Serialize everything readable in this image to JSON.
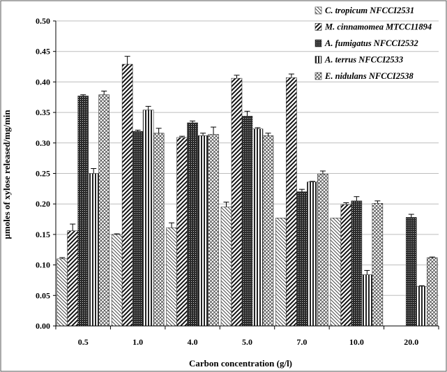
{
  "chart_data": {
    "type": "bar",
    "title": "",
    "xlabel": "Carbon concentration (g/l)",
    "ylabel": "µmoles of xylose released/mg/min",
    "categories": [
      "0.5",
      "1.0",
      "4.0",
      "5.0",
      "7.0",
      "10.0",
      "20.0"
    ],
    "ylim": [
      0,
      0.5
    ],
    "yticks": [
      "0.00",
      "0.05",
      "0.10",
      "0.15",
      "0.20",
      "0.25",
      "0.30",
      "0.35",
      "0.40",
      "0.45",
      "0.50"
    ],
    "legend_position": "top-right",
    "series": [
      {
        "name": "C. tropicum NFCCI2531",
        "pattern": "diag-thin-back",
        "values": [
          0.11,
          0.15,
          0.161,
          0.195,
          0.177,
          0.177,
          null
        ],
        "errors": [
          0.002,
          0.001,
          0.008,
          0.008,
          0.0,
          0.0,
          null
        ]
      },
      {
        "name": "M. cinnamomea MTCC11894",
        "pattern": "diag-thick-fwd",
        "values": [
          0.156,
          0.429,
          0.309,
          0.406,
          0.407,
          0.199,
          null
        ],
        "errors": [
          0.011,
          0.013,
          0.002,
          0.005,
          0.006,
          0.003,
          null
        ]
      },
      {
        "name": "A. fumigatus NFCCI2532",
        "pattern": "dense-dots",
        "values": [
          0.377,
          0.319,
          0.333,
          0.344,
          0.22,
          0.205,
          0.178
        ],
        "errors": [
          0.002,
          0.002,
          0.003,
          0.008,
          0.004,
          0.007,
          0.005
        ]
      },
      {
        "name": "A. terrus NFCCI2533",
        "pattern": "vertical-lines",
        "values": [
          0.25,
          0.354,
          0.312,
          0.323,
          0.236,
          0.084,
          0.065
        ],
        "errors": [
          0.008,
          0.006,
          0.004,
          0.002,
          0.001,
          0.007,
          0.001
        ]
      },
      {
        "name": "E. nidulans NFCCI2538",
        "pattern": "crosshatch",
        "values": [
          0.379,
          0.316,
          0.314,
          0.312,
          0.249,
          0.201,
          0.112
        ],
        "errors": [
          0.006,
          0.008,
          0.012,
          0.004,
          0.005,
          0.004,
          0.001
        ]
      }
    ]
  }
}
